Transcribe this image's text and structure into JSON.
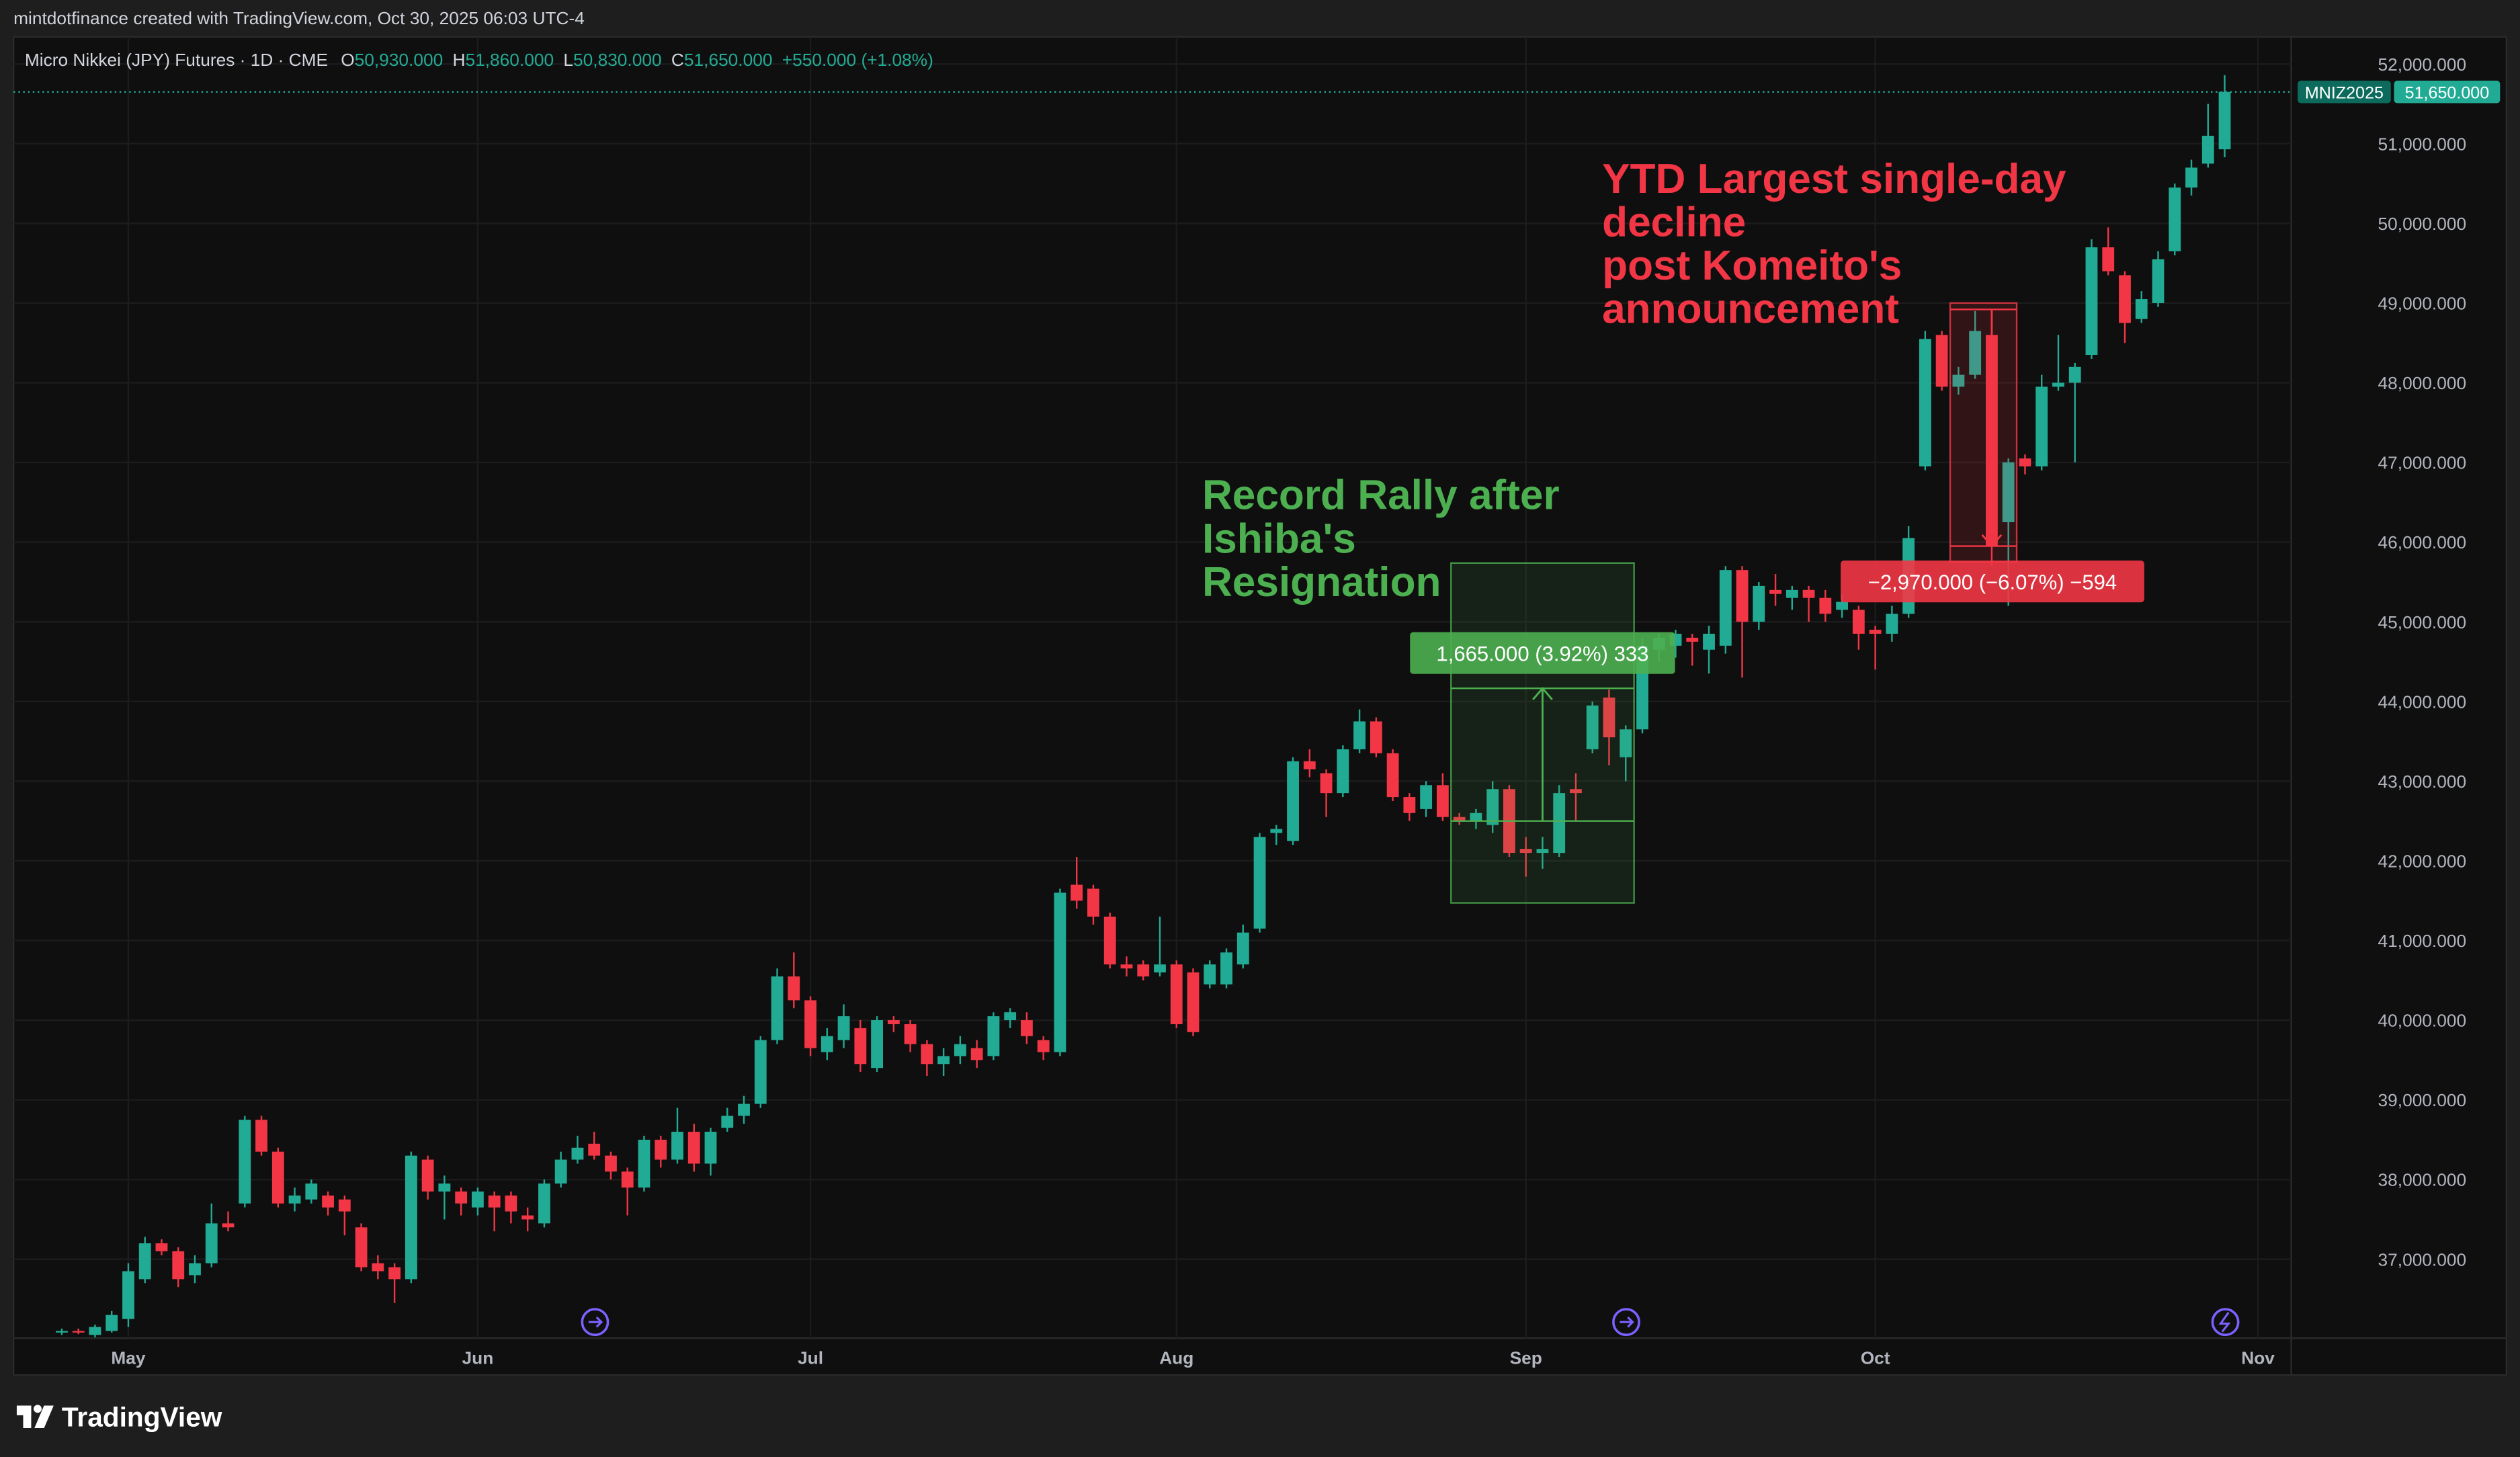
{
  "header": {
    "credit": "mintdotfinance created with TradingView.com, Oct 30, 2025 06:03 UTC-4",
    "logo": "TradingView"
  },
  "chart_data": {
    "type": "candlestick",
    "title": "Micro Nikkei (JPY) Futures · 1D · CME",
    "ohlc_header": [
      {
        "key": "O",
        "value": "50,930.000"
      },
      {
        "key": "H",
        "value": "51,860.000"
      },
      {
        "key": "L",
        "value": "50,830.000"
      },
      {
        "key": "C",
        "value": "51,650.000"
      }
    ],
    "change": "+550.000 (+1.08%)",
    "colors": {
      "up": "#22ab94",
      "down": "#f23645"
    },
    "open": [
      36080,
      36100,
      36050,
      36100,
      36250,
      36750,
      37200,
      37100,
      36800,
      36950,
      37450,
      37700,
      38750,
      38350,
      37700,
      37750,
      37800,
      37750,
      37400,
      36950,
      36900,
      36750,
      38250,
      37850,
      37850,
      37650,
      37800,
      37800,
      37550,
      37450,
      37950,
      38250,
      38450,
      38300,
      38100,
      37900,
      38500,
      38250,
      38600,
      38200,
      38650,
      38800,
      38950,
      39750,
      40550,
      40250,
      39600,
      39750,
      39900,
      39400,
      40000,
      39950,
      39700,
      39450,
      39550,
      39650,
      39550,
      40000,
      40000,
      39750,
      39600,
      41700,
      41650,
      41300,
      40700,
      40700,
      40600,
      40700,
      40600,
      40450,
      40450,
      40700,
      41150,
      42350,
      42250,
      43250,
      43100,
      42850,
      43400,
      43750,
      43350,
      42800,
      42650,
      42950,
      42550,
      42500,
      42450,
      42900,
      42150,
      42100,
      42100,
      42900,
      43400,
      44050,
      43300,
      43650,
      44650,
      44700,
      44800,
      44650,
      44700,
      45650,
      45000,
      45400,
      45300,
      45400,
      45300,
      45150,
      45150,
      44900,
      44850,
      45100,
      46950,
      48600,
      47950,
      48100,
      48600,
      46250,
      47050,
      46950,
      47950,
      48000,
      48350,
      49700,
      49350,
      48800,
      49000,
      49650,
      50450,
      50750,
      50930
    ],
    "high": [
      36130,
      36130,
      36180,
      36350,
      36950,
      37280,
      37250,
      37150,
      37050,
      37700,
      37600,
      38800,
      38800,
      38400,
      37900,
      38000,
      37850,
      37800,
      37450,
      37050,
      36950,
      38350,
      38300,
      38050,
      37900,
      37900,
      37850,
      37850,
      37650,
      38000,
      38350,
      38550,
      38600,
      38350,
      38150,
      38550,
      38550,
      38900,
      38700,
      38650,
      38900,
      39050,
      39800,
      40650,
      40850,
      40300,
      39900,
      40200,
      40000,
      40050,
      40050,
      40000,
      39750,
      39650,
      39800,
      39750,
      40100,
      40150,
      40100,
      39800,
      41650,
      42050,
      41700,
      41350,
      40800,
      40750,
      41300,
      40750,
      40650,
      40750,
      40900,
      41200,
      42350,
      42450,
      43300,
      43400,
      43150,
      43450,
      43900,
      43800,
      43400,
      42850,
      43000,
      43100,
      42600,
      42650,
      43000,
      42950,
      42300,
      42300,
      42950,
      43100,
      44000,
      44150,
      43700,
      44800,
      44850,
      44900,
      44850,
      44950,
      45700,
      45700,
      45500,
      45600,
      45450,
      45450,
      45400,
      45350,
      45200,
      44950,
      45200,
      46200,
      48650,
      48650,
      48200,
      48900,
      48900,
      47050,
      47100,
      48100,
      48600,
      48250,
      49800,
      49950,
      49400,
      49150,
      49650,
      50500,
      50800,
      51500,
      51860
    ],
    "low": [
      36050,
      36060,
      36020,
      36080,
      36150,
      36700,
      37050,
      36650,
      36700,
      36900,
      37350,
      37650,
      38300,
      37650,
      37600,
      37700,
      37550,
      37300,
      36850,
      36750,
      36450,
      36700,
      37750,
      37500,
      37550,
      37550,
      37350,
      37450,
      37350,
      37400,
      37900,
      38200,
      38250,
      38000,
      37550,
      37850,
      38150,
      38200,
      38100,
      38050,
      38600,
      38700,
      38900,
      39700,
      40150,
      39550,
      39500,
      39650,
      39350,
      39350,
      39850,
      39600,
      39300,
      39300,
      39450,
      39400,
      39500,
      39900,
      39700,
      39500,
      39550,
      41400,
      41200,
      40650,
      40550,
      40500,
      40550,
      39900,
      39800,
      40400,
      40400,
      40650,
      41100,
      42200,
      42200,
      43050,
      42550,
      42800,
      43350,
      43300,
      42750,
      42500,
      42550,
      42500,
      42450,
      42400,
      42350,
      42050,
      41800,
      41900,
      42050,
      42500,
      43350,
      43200,
      43000,
      43600,
      44500,
      44550,
      44450,
      44350,
      44600,
      44300,
      44900,
      45200,
      45150,
      45000,
      45000,
      45050,
      44650,
      44400,
      44750,
      45050,
      46900,
      47900,
      47850,
      48050,
      45700,
      45200,
      46850,
      46900,
      47900,
      47000,
      48300,
      49350,
      48500,
      48750,
      48950,
      49600,
      50350,
      50700,
      50830
    ],
    "close": [
      36100,
      36090,
      36150,
      36300,
      36850,
      37200,
      37100,
      36750,
      36950,
      37450,
      37400,
      38750,
      38350,
      37700,
      37800,
      37950,
      37650,
      37600,
      36900,
      36850,
      36750,
      38300,
      37850,
      37950,
      37700,
      37850,
      37650,
      37600,
      37500,
      37950,
      38250,
      38400,
      38300,
      38100,
      37900,
      38500,
      38250,
      38600,
      38200,
      38600,
      38800,
      38950,
      39750,
      40550,
      40250,
      39650,
      39800,
      40050,
      39450,
      40000,
      39950,
      39700,
      39450,
      39550,
      39700,
      39500,
      40050,
      40100,
      39800,
      39600,
      41600,
      41500,
      41300,
      40700,
      40650,
      40550,
      40700,
      39950,
      39850,
      40700,
      40850,
      41100,
      42300,
      42400,
      43250,
      43150,
      42850,
      43400,
      43750,
      43350,
      42800,
      42600,
      42950,
      42550,
      42500,
      42600,
      42900,
      42100,
      42100,
      42150,
      42850,
      42850,
      43950,
      43550,
      43650,
      44700,
      44800,
      44850,
      44750,
      44850,
      45650,
      45000,
      45450,
      45350,
      45400,
      45300,
      45100,
      45250,
      44850,
      44850,
      45100,
      46050,
      48550,
      47950,
      48100,
      48650,
      45950,
      47000,
      46950,
      47950,
      48000,
      48200,
      49700,
      49400,
      48750,
      49050,
      49550,
      50450,
      50700,
      51100,
      51650
    ],
    "ylim": [
      36010,
      52340
    ],
    "yticks": [
      {
        "value": 37000,
        "label": "37,000.000"
      },
      {
        "value": 38000,
        "label": "38,000.000"
      },
      {
        "value": 39000,
        "label": "39,000.000"
      },
      {
        "value": 40000,
        "label": "40,000.000"
      },
      {
        "value": 41000,
        "label": "41,000.000"
      },
      {
        "value": 42000,
        "label": "42,000.000"
      },
      {
        "value": 43000,
        "label": "43,000.000"
      },
      {
        "value": 44000,
        "label": "44,000.000"
      },
      {
        "value": 45000,
        "label": "45,000.000"
      },
      {
        "value": 46000,
        "label": "46,000.000"
      },
      {
        "value": 47000,
        "label": "47,000.000"
      },
      {
        "value": 48000,
        "label": "48,000.000"
      },
      {
        "value": 49000,
        "label": "49,000.000"
      },
      {
        "value": 50000,
        "label": "50,000.000"
      },
      {
        "value": 51000,
        "label": "51,000.000"
      },
      {
        "value": 52000,
        "label": "52,000.000"
      }
    ],
    "xlim": [
      -2.9,
      134
    ],
    "xticks": [
      {
        "value": 4,
        "label": "May"
      },
      {
        "value": 25,
        "label": "Jun"
      },
      {
        "value": 45,
        "label": "Jul"
      },
      {
        "value": 67,
        "label": "Aug"
      },
      {
        "value": 88,
        "label": "Sep"
      },
      {
        "value": 109,
        "label": "Oct"
      },
      {
        "value": 132,
        "label": "Nov"
      }
    ],
    "grid": true,
    "symbol": "MNIZ2025",
    "last_price": {
      "value": 51650,
      "label": "51,650.000"
    },
    "measures": [
      {
        "label": "1,665.000 (3.92%) 333",
        "start": 42500,
        "end": 44165,
        "index_range": [
          84,
          94
        ],
        "color": "#4caf50"
      },
      {
        "label": "−2,970.000 (−6.07%) −594",
        "start": 48920,
        "end": 45950,
        "index_range": [
          114,
          117
        ],
        "color": "#f23645"
      }
    ],
    "annotations": [
      {
        "lines": [
          "Record Rally after",
          "Ishiba's",
          "Resignation"
        ],
        "color": "#4caf50"
      },
      {
        "lines": [
          "YTD Largest single-day",
          "decline",
          "post Komeito's",
          "announcement"
        ],
        "color": "#f23645"
      }
    ]
  }
}
